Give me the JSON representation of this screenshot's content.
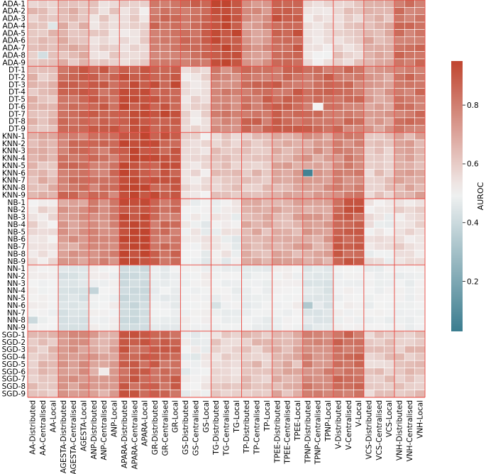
{
  "chart_data": {
    "type": "heatmap",
    "title": "",
    "colorbar": {
      "label": "AUROC",
      "range": [
        0.03,
        0.95
      ],
      "ticks": [
        0.2,
        0.4,
        0.6,
        0.8
      ],
      "tick_labels": [
        "0.2",
        "0.4",
        "0.6",
        "0.8"
      ],
      "colormap": "diverging teal-white-red",
      "color_low": "#3b7d8f",
      "color_mid": "#f2f2f2",
      "color_high": "#c0452f",
      "group_separator_color": "#e8423a"
    },
    "rows": [
      "ADA-1",
      "ADA-2",
      "ADA-3",
      "ADA-4",
      "ADA-5",
      "ADA-6",
      "ADA-7",
      "ADA-8",
      "ADA-9",
      "DT-1",
      "DT-2",
      "DT-3",
      "DT-4",
      "DT-5",
      "DT-6",
      "DT-7",
      "DT-8",
      "DT-9",
      "KNN-1",
      "KNN-2",
      "KNN-3",
      "KNN-4",
      "KNN-5",
      "KNN-6",
      "KNN-7",
      "KNN-8",
      "KNN-9",
      "NB-1",
      "NB-2",
      "NB-3",
      "NB-4",
      "NB-5",
      "NB-6",
      "NB-7",
      "NB-8",
      "NB-9",
      "NN-1",
      "NN-2",
      "NN-3",
      "NN-4",
      "NN-5",
      "NN-6",
      "NN-7",
      "NN-8",
      "NN-9",
      "SGD-1",
      "SGD-2",
      "SGD-3",
      "SGD-4",
      "SGD-5",
      "SGD-6",
      "SGD-7",
      "SGD-8",
      "SGD-9"
    ],
    "columns": [
      "AA-Distributed",
      "AA-Centralised",
      "AA-Local",
      "AGESTA-Distributed",
      "AGESTA-Centralised",
      "AGESTA-Local",
      "ANP-Distributed",
      "ANP-Centralised",
      "ANP-Local",
      "APARA-Distributed",
      "APARA-Centralised",
      "APARA-Local",
      "GR-Distributed",
      "GR-Centralised",
      "GR-Local",
      "GS-Distributed",
      "GS-Centralised",
      "GS-Local",
      "TG-Distributed",
      "TG-Centralised",
      "TG-Local",
      "TP-Distributed",
      "TP-Centralised",
      "TP-Local",
      "TPEE-Distributed",
      "TPEE-Centralised",
      "TPEE-Local",
      "TPNP-Distributed",
      "TPNP-Centralised",
      "TPNP-Local",
      "V-Distributed",
      "V-Centralised",
      "V-Local",
      "VCS-Distributed",
      "VCS-Centralised",
      "VCS-Local",
      "VNH-Distributed",
      "VNH-Centralised",
      "VNH-Local"
    ],
    "model_groups": [
      "ADA",
      "DT",
      "KNN",
      "NB",
      "NN",
      "SGD"
    ],
    "dataset_groups": [
      "AA",
      "AGESTA",
      "ANP",
      "APARA",
      "GR",
      "GS",
      "TG",
      "TP",
      "TPEE",
      "TPNP",
      "V",
      "VCS",
      "VNH"
    ],
    "group_base_auroc": {
      "ADA": [
        0.62,
        0.65,
        0.58,
        0.56,
        0.82,
        0.84,
        0.93,
        0.74,
        0.88,
        0.53,
        0.59,
        0.66,
        0.82
      ],
      "DT": [
        0.63,
        0.86,
        0.86,
        0.9,
        0.9,
        0.55,
        0.78,
        0.84,
        0.85,
        0.84,
        0.82,
        0.72,
        0.82
      ],
      "KNN": [
        0.65,
        0.82,
        0.82,
        0.93,
        0.9,
        0.55,
        0.6,
        0.62,
        0.68,
        0.72,
        0.78,
        0.6,
        0.68
      ],
      "NB": [
        0.55,
        0.72,
        0.78,
        0.93,
        0.84,
        0.5,
        0.5,
        0.66,
        0.68,
        0.7,
        0.88,
        0.52,
        0.56
      ],
      "NN": [
        0.5,
        0.44,
        0.5,
        0.4,
        0.48,
        0.5,
        0.49,
        0.48,
        0.5,
        0.45,
        0.5,
        0.49,
        0.49
      ],
      "SGD": [
        0.62,
        0.74,
        0.7,
        0.87,
        0.86,
        0.5,
        0.58,
        0.62,
        0.66,
        0.78,
        0.84,
        0.6,
        0.62
      ]
    },
    "overrides": [
      {
        "row": "KNN-6",
        "column": "TPNP-Distributed",
        "value": 0.05
      },
      {
        "row": "ADA-6",
        "column": "TPNP-Centralised",
        "value": 0.52
      },
      {
        "row": "DT-6",
        "column": "TPNP-Centralised",
        "value": 0.5
      },
      {
        "row": "ADA-8",
        "column": "AA-Centralised",
        "value": 0.42
      },
      {
        "row": "ADA-4",
        "column": "AA-Local",
        "value": 0.45
      },
      {
        "row": "SGD-6",
        "column": "ANP-Centralised",
        "value": 0.52
      },
      {
        "row": "SGD-4",
        "column": "V-Local",
        "value": 0.88
      },
      {
        "row": "NN-6",
        "column": "TPNP-Distributed",
        "value": 0.33
      },
      {
        "row": "NN-8",
        "column": "AA-Distributed",
        "value": 0.4
      },
      {
        "row": "NN-6",
        "column": "TG-Distributed",
        "value": 0.43
      },
      {
        "row": "NN-4",
        "column": "ANP-Distributed",
        "value": 0.38
      }
    ]
  }
}
